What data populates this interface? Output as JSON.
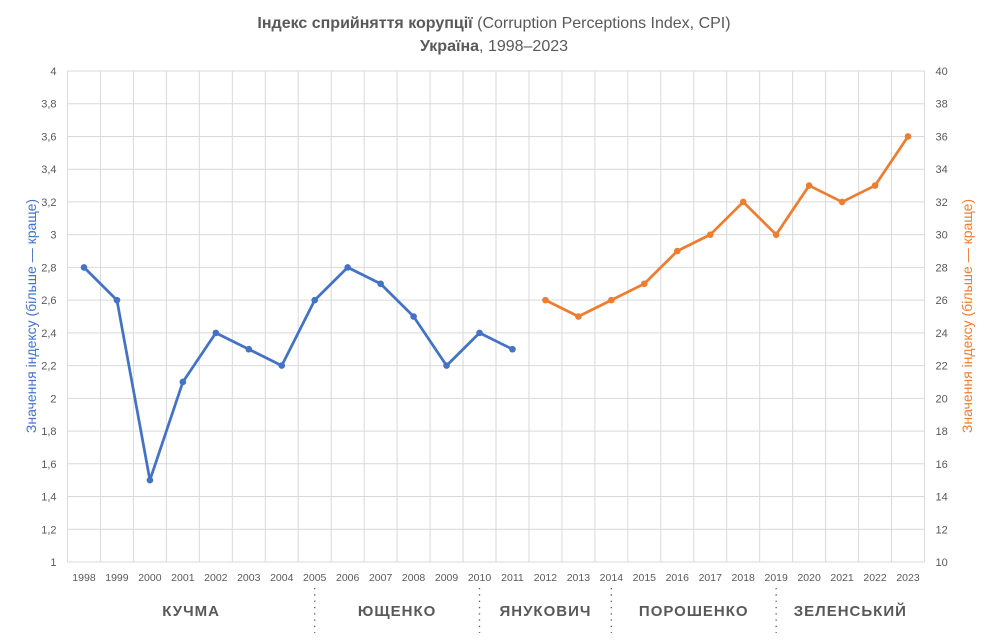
{
  "chart_data": {
    "type": "line",
    "title_bold": "Індекс сприйняття корупції",
    "title_rest": " (Corruption Perceptions Index, CPI)",
    "subtitle_bold": "Україна",
    "subtitle_rest": ",  1998–2023",
    "ylabel_left": "Значення індексу (більше — краще)",
    "ylabel_right": "Значення індексу (більше — краще)",
    "ylim_left": [
      1,
      4
    ],
    "ylim_right": [
      10,
      40
    ],
    "yticks_left": [
      "1",
      "1,2",
      "1,4",
      "1,6",
      "1,8",
      "2",
      "2,2",
      "2,4",
      "2,6",
      "2,8",
      "3",
      "3,2",
      "3,4",
      "3,6",
      "3,8",
      "4"
    ],
    "yticks_right": [
      "10",
      "12",
      "14",
      "16",
      "18",
      "20",
      "22",
      "24",
      "26",
      "28",
      "30",
      "32",
      "34",
      "36",
      "38",
      "40"
    ],
    "grid": true,
    "categories": [
      "1998",
      "1999",
      "2000",
      "2001",
      "2002",
      "2003",
      "2004",
      "2005",
      "2006",
      "2007",
      "2008",
      "2009",
      "2010",
      "2011",
      "2012",
      "2013",
      "2014",
      "2015",
      "2016",
      "2017",
      "2018",
      "2019",
      "2020",
      "2021",
      "2022",
      "2023"
    ],
    "series": [
      {
        "axis": "left",
        "color": "#4472C4",
        "x": [
          "1998",
          "1999",
          "2000",
          "2001",
          "2002",
          "2003",
          "2004",
          "2005",
          "2006",
          "2007",
          "2008",
          "2009",
          "2010",
          "2011"
        ],
        "values": [
          2.8,
          2.6,
          1.5,
          2.1,
          2.4,
          2.3,
          2.2,
          2.6,
          2.8,
          2.7,
          2.5,
          2.2,
          2.4,
          2.3
        ]
      },
      {
        "axis": "right",
        "color": "#ED7D31",
        "x": [
          "2012",
          "2013",
          "2014",
          "2015",
          "2016",
          "2017",
          "2018",
          "2019",
          "2020",
          "2021",
          "2022",
          "2023"
        ],
        "values": [
          26,
          25,
          26,
          27,
          29,
          30,
          32,
          30,
          33,
          32,
          33,
          36
        ]
      }
    ],
    "periods": [
      {
        "label": "КУЧМА",
        "from": "1998",
        "to": "2005"
      },
      {
        "label": "ЮЩЕНКО",
        "from": "2005",
        "to": "2010"
      },
      {
        "label": "ЯНУКОВИЧ",
        "from": "2010",
        "to": "2014"
      },
      {
        "label": "ПОРОШЕНКО",
        "from": "2014",
        "to": "2019"
      },
      {
        "label": "ЗЕЛЕНСЬКИЙ",
        "from": "2019",
        "to": "2023"
      }
    ]
  }
}
